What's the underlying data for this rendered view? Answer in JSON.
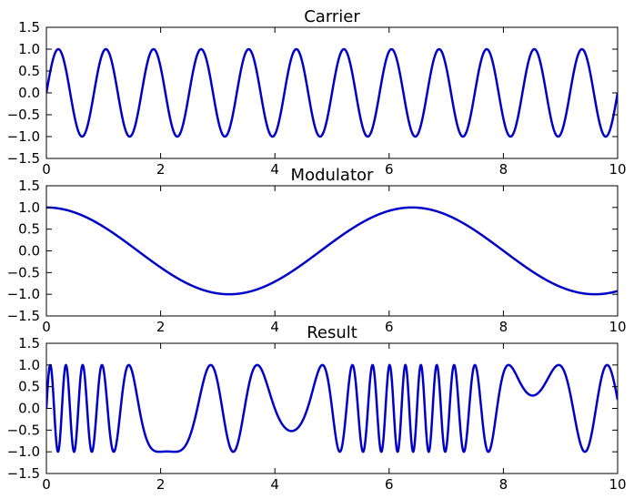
{
  "line_color": "#0000c8",
  "chart_data": [
    {
      "type": "line",
      "title": "Carrier",
      "function": "sin(2*pi*f*t)",
      "carrier_frequency": 1.2,
      "xlim": [
        0,
        10
      ],
      "ylim": [
        -1.5,
        1.5
      ],
      "xticks": [
        0,
        2,
        4,
        6,
        8,
        10
      ],
      "xtick_labels": [
        "0",
        "2",
        "4",
        "6",
        "8",
        "10"
      ],
      "yticks": [
        -1.5,
        -1.0,
        -0.5,
        0.0,
        0.5,
        1.0,
        1.5
      ],
      "ytick_labels": [
        "−1.5",
        "−1.0",
        "−0.5",
        "0.0",
        "0.5",
        "1.0",
        "1.5"
      ],
      "xlabel": "",
      "ylabel": "",
      "grid": false,
      "legend": "none"
    },
    {
      "type": "line",
      "title": "Modulator",
      "function": "cos(2*pi*f*t)",
      "modulator_frequency": 0.1562,
      "xlim": [
        0,
        10
      ],
      "ylim": [
        -1.5,
        1.5
      ],
      "xticks": [
        0,
        2,
        4,
        6,
        8,
        10
      ],
      "xtick_labels": [
        "0",
        "2",
        "4",
        "6",
        "8",
        "10"
      ],
      "yticks": [
        -1.5,
        -1.0,
        -0.5,
        0.0,
        0.5,
        1.0,
        1.5
      ],
      "ytick_labels": [
        "−1.5",
        "−1.0",
        "−0.5",
        "0.0",
        "0.5",
        "1.0",
        "1.5"
      ],
      "xlabel": "",
      "ylabel": "",
      "grid": false,
      "legend": "none"
    },
    {
      "type": "line",
      "title": "Result",
      "function": "sin(2*pi*(fc*t + beta*sin(2*pi*fm*t)))",
      "carrier_frequency": 1.2,
      "modulator_frequency": 0.1562,
      "modulation_index": 2.55,
      "xlim": [
        0,
        10
      ],
      "ylim": [
        -1.5,
        1.5
      ],
      "xticks": [
        0,
        2,
        4,
        6,
        8,
        10
      ],
      "xtick_labels": [
        "0",
        "2",
        "4",
        "6",
        "8",
        "10"
      ],
      "yticks": [
        -1.5,
        -1.0,
        -0.5,
        0.0,
        0.5,
        1.0,
        1.5
      ],
      "ytick_labels": [
        "−1.5",
        "−1.0",
        "−0.5",
        "0.0",
        "0.5",
        "1.0",
        "1.5"
      ],
      "xlabel": "",
      "ylabel": "",
      "grid": false,
      "legend": "none"
    }
  ]
}
